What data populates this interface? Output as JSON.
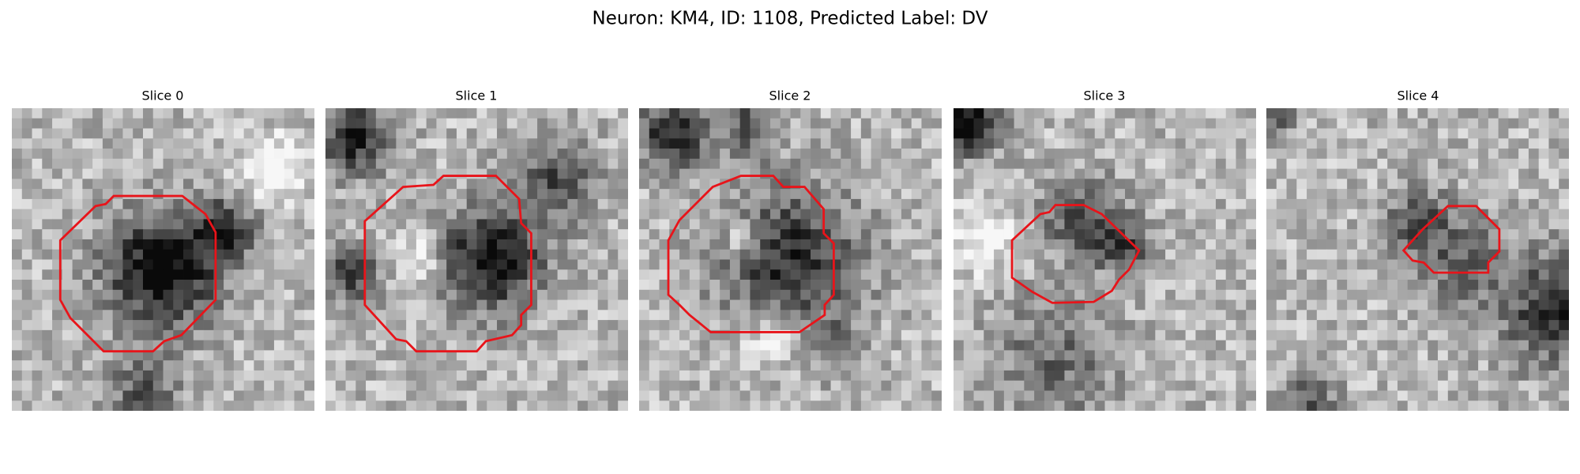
{
  "title": "Neuron: KM4, ID: 1108, Predicted Label: DV",
  "panels": [
    {
      "title": "Slice 0"
    },
    {
      "title": "Slice 1"
    },
    {
      "title": "Slice 2"
    },
    {
      "title": "Slice 3"
    },
    {
      "title": "Slice 4"
    }
  ]
}
